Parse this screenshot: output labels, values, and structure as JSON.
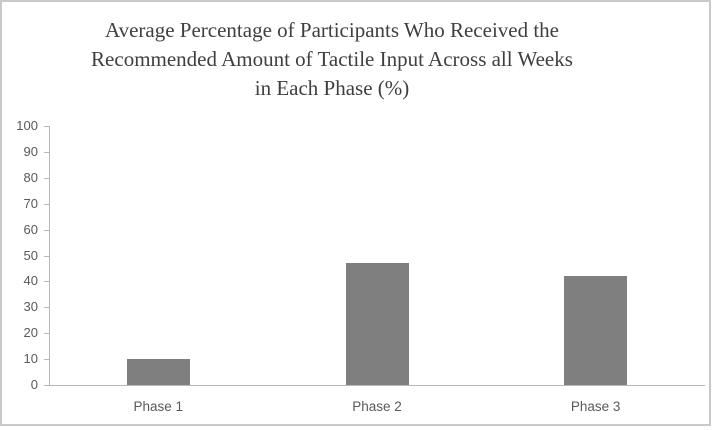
{
  "chart_data": {
    "type": "bar",
    "title": "Average Percentage of Participants Who Received the Recommended Amount of Tactile Input Across all Weeks in Each Phase (%)",
    "title_lines": [
      "Average Percentage of Participants Who Received the",
      "Recommended Amount of Tactile Input Across all Weeks",
      "in Each Phase (%)"
    ],
    "categories": [
      "Phase 1",
      "Phase 2",
      "Phase 3"
    ],
    "values": [
      10,
      47,
      42
    ],
    "xlabel": "",
    "ylabel": "",
    "ylim": [
      0,
      100
    ],
    "ytick_step": 10,
    "grid": false,
    "legend_position": "none",
    "bar_color": "#7f7f7f",
    "axis_color": "#b7b7b7",
    "tick_label_color": "#595959",
    "title_color": "#3f3f3f"
  }
}
